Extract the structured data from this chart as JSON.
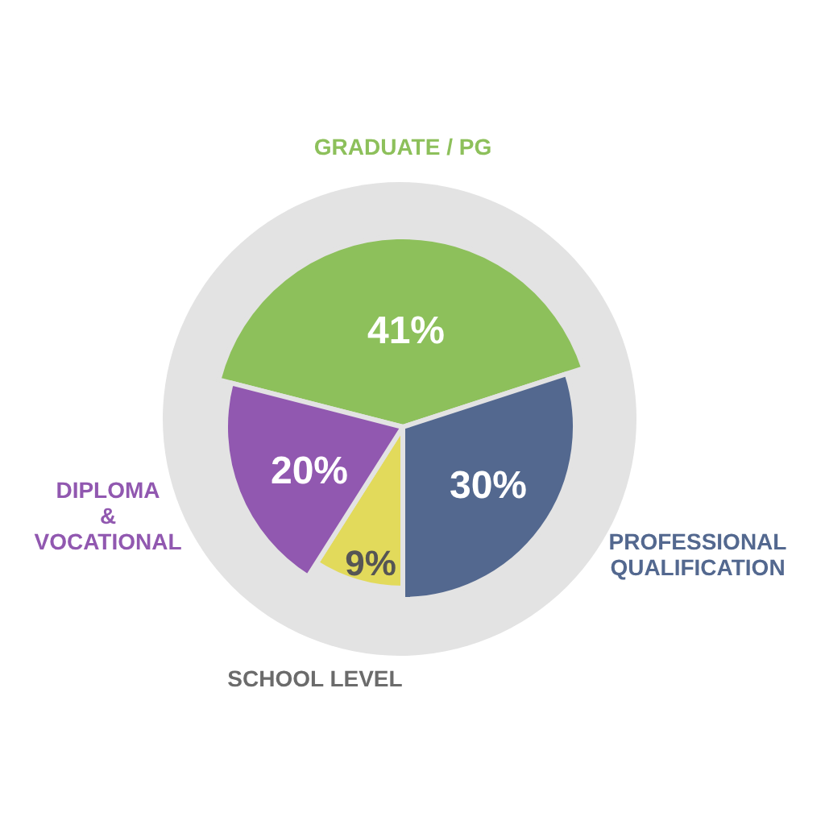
{
  "chart_data": {
    "type": "pie",
    "categories": [
      "GRADUATE / PG",
      "PROFESSIONAL\nQUALIFICATION",
      "SCHOOL LEVEL",
      "DIPLOMA\n&\nVOCATIONAL"
    ],
    "values": [
      41,
      30,
      9,
      20
    ],
    "colors": [
      "#8dc05b",
      "#53688f",
      "#e2da5b",
      "#9158b0"
    ],
    "value_labels": [
      "41%",
      "30%",
      "9%",
      "20%"
    ]
  }
}
